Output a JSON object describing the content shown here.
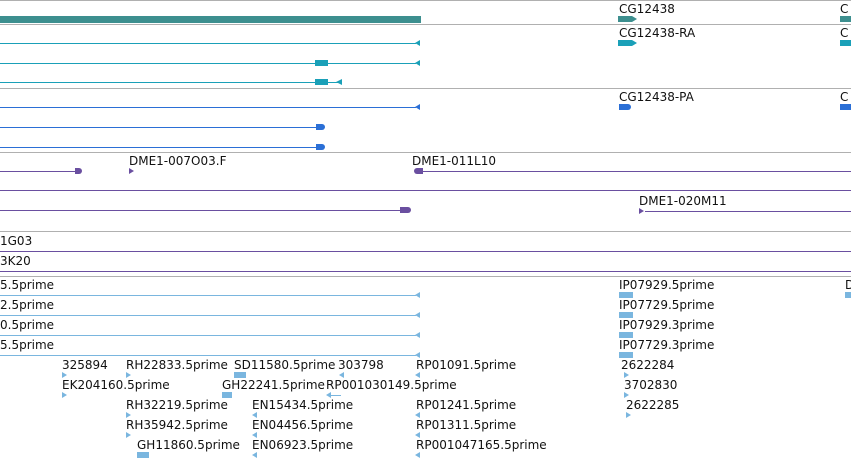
{
  "colors": {
    "gene": "#3d8f8f",
    "transcript": "#1aa0b8",
    "protein": "#2b6fd6",
    "clone": "#6a4fa0",
    "est": "#7ab6df",
    "separator": "#b0b0b0"
  },
  "tracks": {
    "gene": {
      "labels": [
        "CG12438",
        "C"
      ]
    },
    "transcripts": {
      "labels": [
        "CG12438-RA",
        "C"
      ]
    },
    "proteins": {
      "labels": [
        "CG12438-PA",
        "C"
      ]
    },
    "clones": {
      "labels": [
        "DME1-007O03.F",
        "DME1-011L10",
        "DME1-020M11"
      ]
    },
    "bacs": {
      "labels": [
        "1G03",
        "3K20"
      ]
    },
    "est_left": {
      "labels": [
        "5.5prime",
        "2.5prime",
        "0.5prime",
        "5.5prime"
      ]
    },
    "est_right": {
      "labels": [
        "IP07929.5prime",
        "IP07729.5prime",
        "IP07929.3prime",
        "IP07729.3prime",
        "D"
      ]
    },
    "est_misc": {
      "labels": [
        "325894",
        "RH22833.5prime",
        "SD11580.5prime",
        "303798",
        "RP01091.5prime",
        "2622284",
        "EK204160.5prime",
        "GH22241.5prime",
        "RP001030149.5prime",
        "3702830",
        "RH32219.5prime",
        "EN15434.5prime",
        "RP01241.5prime",
        "2622285",
        "RH35942.5prime",
        "EN04456.5prime",
        "RP01311.5prime",
        "GH11860.5prime",
        "EN06923.5prime",
        "RP001047165.5prime"
      ]
    }
  }
}
